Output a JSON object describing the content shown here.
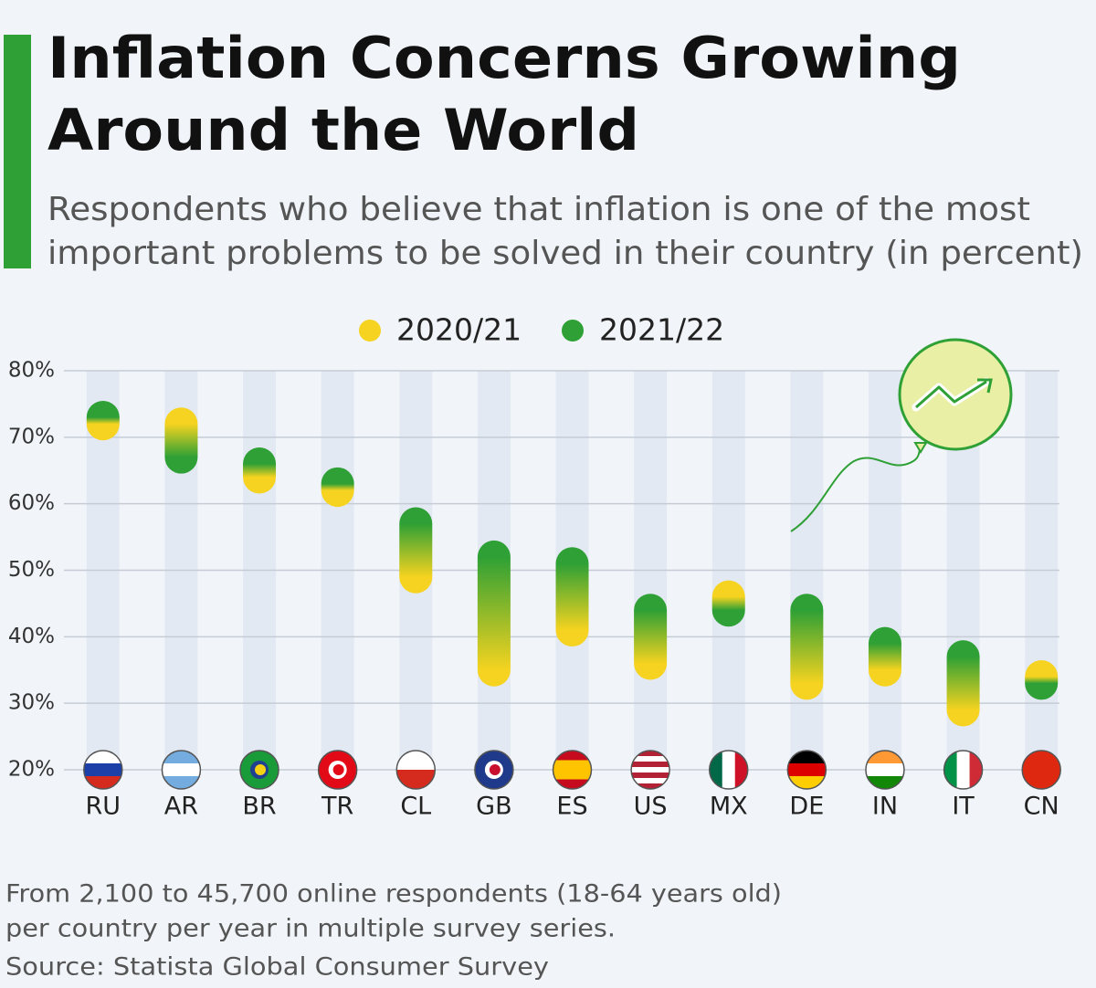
{
  "chart_data": {
    "type": "range",
    "title": [
      "Inflation Concerns Growing",
      "Around the World"
    ],
    "subtitle": [
      "Respondents who believe that inflation is one of the most",
      "important problems to be solved in their country (in percent)"
    ],
    "categories": [
      "RU",
      "AR",
      "BR",
      "TR",
      "CL",
      "GB",
      "ES",
      "US",
      "MX",
      "DE",
      "IN",
      "IT",
      "CN"
    ],
    "series": [
      {
        "name": "2020/21",
        "color": "#f5d320",
        "values": [
          72,
          72,
          64,
          62,
          49,
          35,
          41,
          36,
          46,
          33,
          35,
          29,
          34
        ]
      },
      {
        "name": "2021/22",
        "color": "#2ea035",
        "values": [
          73,
          67,
          66,
          63,
          57,
          52,
          51,
          44,
          44,
          44,
          39,
          37,
          33
        ]
      }
    ],
    "ylim": [
      20,
      80
    ],
    "yticks": [
      {
        "value": 20,
        "label": "20%"
      },
      {
        "value": 30,
        "label": "30%"
      },
      {
        "value": 40,
        "label": "40%"
      },
      {
        "value": 50,
        "label": "50%"
      },
      {
        "value": 60,
        "label": "60%"
      },
      {
        "value": 70,
        "label": "70%"
      },
      {
        "value": 80,
        "label": "80%"
      }
    ],
    "grid": true,
    "legend": "top",
    "notes": [
      "From 2,100 to 45,700 online respondents (18-64 years old)",
      "per country per year in multiple survey series.",
      "Source: Statista Global Consumer Survey"
    ]
  }
}
